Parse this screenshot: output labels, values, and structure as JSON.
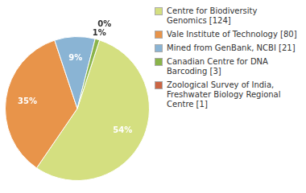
{
  "chart_data": {
    "type": "pie",
    "categories": [
      "Centre for Biodiversity\nGenomics [124]",
      "Vale Institute of Technology [80]",
      "Mined from GenBank, NCBI [21]",
      "Canadian Centre for DNA\nBarcoding [3]",
      "Zoological Survey of India,\nFreshwater Biology Regional\nCentre [1]"
    ],
    "values": [
      54,
      35,
      9,
      1,
      0
    ],
    "value_labels": [
      "54%",
      "35%",
      "9%",
      "1%",
      "0%"
    ],
    "colors": [
      "#d4df80",
      "#e8944a",
      "#8ab4d4",
      "#8ab44a",
      "#cc6644"
    ],
    "legend": "right",
    "data_labels": true
  }
}
